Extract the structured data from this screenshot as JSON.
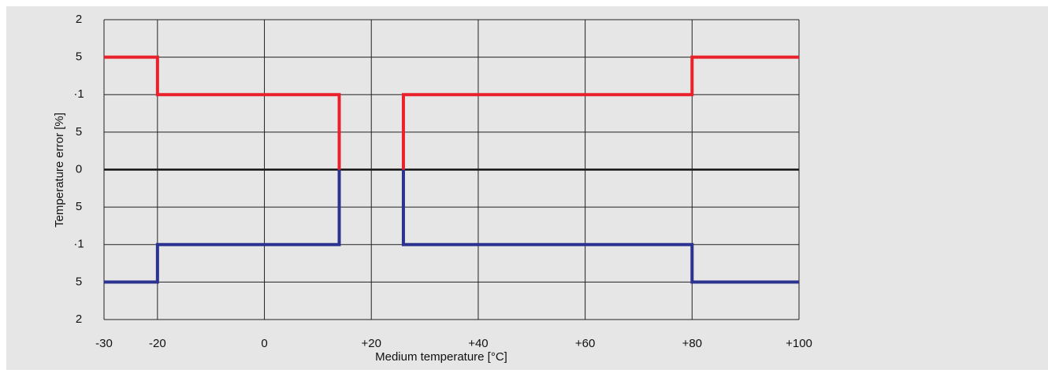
{
  "chart_data": {
    "type": "line",
    "xlabel": "Medium temperature [°C]",
    "ylabel": "Temperature error [%]",
    "xlim": [
      -30,
      100
    ],
    "xticks": [
      -30,
      -20,
      0,
      {
        "value": 20,
        "label": "+20"
      },
      {
        "value": 40,
        "label": "+40"
      },
      {
        "value": 60,
        "label": "+60"
      },
      {
        "value": 80,
        "label": "+80"
      },
      {
        "value": 100,
        "label": "+100"
      }
    ],
    "ylim": [
      -2,
      2
    ],
    "yticks": [
      {
        "value": 2,
        "label": "2"
      },
      {
        "value": 1.5,
        "label": "5"
      },
      {
        "value": 1,
        "label": "·1"
      },
      {
        "value": 0.5,
        "label": "5"
      },
      0,
      {
        "value": -0.5,
        "label": "5"
      },
      {
        "value": -1,
        "label": "·1"
      },
      {
        "value": -1.5,
        "label": "5"
      },
      {
        "value": -2,
        "label": "2"
      }
    ],
    "grid": true,
    "series": [
      {
        "color": "#e8212a",
        "x": [
          -30,
          -20,
          -20,
          14,
          14
        ],
        "values": [
          1.5,
          1.5,
          1,
          1,
          0
        ]
      },
      {
        "color": "#e8212a",
        "x": [
          26,
          26,
          80,
          80,
          100
        ],
        "values": [
          0,
          1,
          1,
          1.5,
          1.5
        ]
      },
      {
        "color": "#2b3290",
        "x": [
          -30,
          -20,
          -20,
          14,
          14
        ],
        "values": [
          -1.5,
          -1.5,
          -1,
          -1,
          0
        ]
      },
      {
        "color": "#2b3290",
        "x": [
          26,
          26,
          80,
          80,
          100
        ],
        "values": [
          0,
          -1,
          -1,
          -1.5,
          -1.5
        ]
      }
    ]
  }
}
